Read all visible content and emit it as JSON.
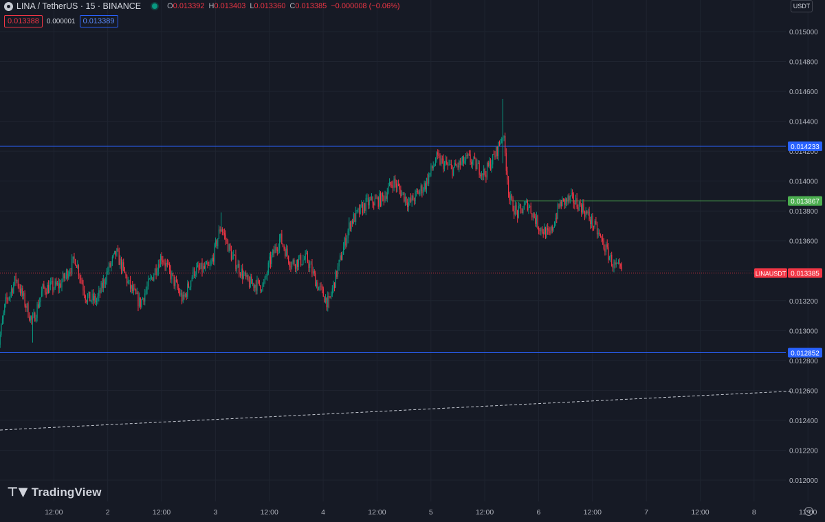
{
  "header": {
    "symbol": "LINA / TetherUS · 15 · BINANCE",
    "ohlc": {
      "o_key": "O",
      "o": "0.013392",
      "h_key": "H",
      "h": "0.013403",
      "l_key": "L",
      "l": "0.013360",
      "c_key": "C",
      "c": "0.013385",
      "change": "−0.000008 (−0.06%)"
    },
    "sell_price": "0.013388",
    "spread": "0.000001",
    "buy_price": "0.013389",
    "currency": "USDT"
  },
  "branding": {
    "logo_text": "TradingView"
  },
  "colors": {
    "background": "#161a25",
    "grid": "#1f2430",
    "up": "#089981",
    "down": "#f23645",
    "level_blue": "#2962ff",
    "level_green": "#4caf50",
    "trendline": "#c7cbd4"
  },
  "chart_data": {
    "type": "candlestick",
    "symbol": "LINAUSDT",
    "y_range": [
      0.0119,
      0.0152
    ],
    "y_ticks": [
      "0.012000",
      "0.012200",
      "0.012400",
      "0.012600",
      "0.012800",
      "0.013000",
      "0.013200",
      "0.013400",
      "0.013600",
      "0.013800",
      "0.014000",
      "0.014200",
      "0.014400",
      "0.014600",
      "0.014800",
      "0.015000"
    ],
    "x_range_days": [
      1.0,
      8.55
    ],
    "x_ticks": [
      {
        "t": 1.5,
        "label": "12:00"
      },
      {
        "t": 2.0,
        "label": "2"
      },
      {
        "t": 2.5,
        "label": "12:00"
      },
      {
        "t": 3.0,
        "label": "3"
      },
      {
        "t": 3.5,
        "label": "12:00"
      },
      {
        "t": 4.0,
        "label": "4"
      },
      {
        "t": 4.5,
        "label": "12:00"
      },
      {
        "t": 5.0,
        "label": "5"
      },
      {
        "t": 5.5,
        "label": "12:00"
      },
      {
        "t": 6.0,
        "label": "6"
      },
      {
        "t": 6.5,
        "label": "12:00"
      },
      {
        "t": 7.0,
        "label": "7"
      },
      {
        "t": 7.5,
        "label": "12:00"
      },
      {
        "t": 8.0,
        "label": "8"
      },
      {
        "t": 8.5,
        "label": "12:00"
      }
    ],
    "price_path": [
      [
        0.97,
        0.01283
      ],
      [
        1.05,
        0.01318
      ],
      [
        1.15,
        0.01335
      ],
      [
        1.3,
        0.01305
      ],
      [
        1.4,
        0.01328
      ],
      [
        1.55,
        0.0133
      ],
      [
        1.7,
        0.01348
      ],
      [
        1.8,
        0.01322
      ],
      [
        1.9,
        0.0132
      ],
      [
        2.0,
        0.0134
      ],
      [
        2.08,
        0.01352
      ],
      [
        2.2,
        0.0133
      ],
      [
        2.3,
        0.01318
      ],
      [
        2.5,
        0.0135
      ],
      [
        2.6,
        0.01335
      ],
      [
        2.7,
        0.0132
      ],
      [
        2.8,
        0.0134
      ],
      [
        2.95,
        0.01342
      ],
      [
        3.05,
        0.0137
      ],
      [
        3.15,
        0.0135
      ],
      [
        3.3,
        0.01332
      ],
      [
        3.45,
        0.0133
      ],
      [
        3.5,
        0.01345
      ],
      [
        3.6,
        0.01362
      ],
      [
        3.7,
        0.01345
      ],
      [
        3.85,
        0.01348
      ],
      [
        3.95,
        0.0133
      ],
      [
        4.05,
        0.01318
      ],
      [
        4.15,
        0.01345
      ],
      [
        4.25,
        0.01372
      ],
      [
        4.4,
        0.01385
      ],
      [
        4.55,
        0.01388
      ],
      [
        4.65,
        0.014
      ],
      [
        4.8,
        0.01385
      ],
      [
        4.95,
        0.01398
      ],
      [
        5.05,
        0.01415
      ],
      [
        5.2,
        0.01408
      ],
      [
        5.35,
        0.01415
      ],
      [
        5.5,
        0.01405
      ],
      [
        5.6,
        0.01418
      ],
      [
        5.67,
        0.01432
      ],
      [
        5.73,
        0.01388
      ],
      [
        5.8,
        0.01378
      ],
      [
        5.9,
        0.01385
      ],
      [
        6.0,
        0.0137
      ],
      [
        6.1,
        0.01363
      ],
      [
        6.2,
        0.01385
      ],
      [
        6.3,
        0.01388
      ],
      [
        6.4,
        0.01383
      ],
      [
        6.5,
        0.01372
      ],
      [
        6.6,
        0.01358
      ],
      [
        6.7,
        0.01343
      ],
      [
        6.78,
        0.01339
      ]
    ],
    "spikes": [
      {
        "t": 5.67,
        "high": 0.01455,
        "low": 0.01412
      },
      {
        "t": 1.3,
        "low": 0.01292
      },
      {
        "t": 4.05,
        "low": 0.01315
      },
      {
        "t": 3.05,
        "high": 0.01379
      }
    ],
    "horizontal_levels": [
      {
        "price": 0.014233,
        "label": "0.014233",
        "color": "#2962ff",
        "style": "solid",
        "from_t": 1.0
      },
      {
        "price": 0.013867,
        "label": "0.013867",
        "color": "#4caf50",
        "style": "solid",
        "from_t": 5.75
      },
      {
        "price": 0.012852,
        "label": "0.012852",
        "color": "#2962ff",
        "style": "solid",
        "from_t": 1.0
      }
    ],
    "last_price": {
      "price": 0.013385,
      "symbol_label": "LINAUSDT",
      "label": "0.013385",
      "color": "#f23645"
    },
    "trendline": {
      "t1": 1.0,
      "p1": 0.012335,
      "t2": 8.35,
      "p2": 0.012595,
      "style": "dashed"
    }
  }
}
